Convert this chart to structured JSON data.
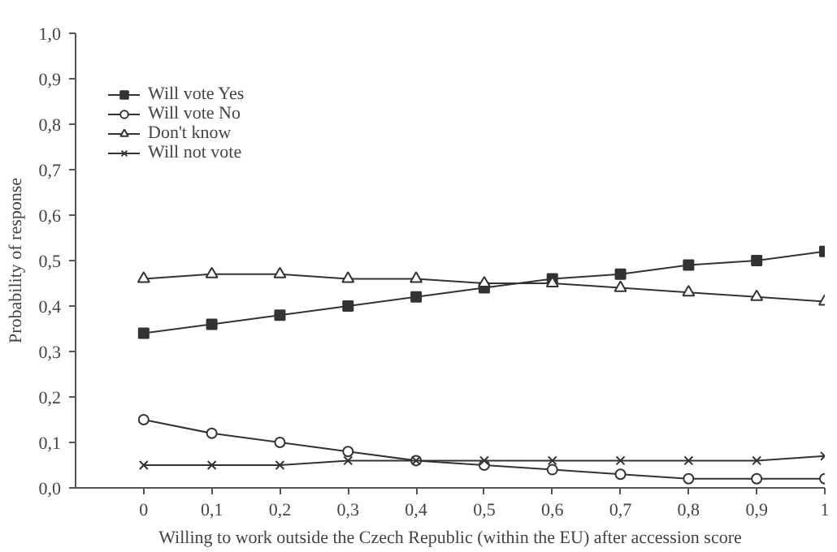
{
  "chart_data": {
    "type": "line",
    "xlabel": "Willing to work outside the Czech Republic (within the EU) after accession score",
    "ylabel": "Probability of response",
    "x": [
      0,
      0.1,
      0.2,
      0.3,
      0.4,
      0.5,
      0.6,
      0.7,
      0.8,
      0.9,
      1
    ],
    "series": [
      {
        "name": "Will vote Yes",
        "color": "#333333",
        "marker": "square",
        "values": [
          0.34,
          0.36,
          0.38,
          0.4,
          0.42,
          0.44,
          0.46,
          0.47,
          0.49,
          0.5,
          0.52
        ]
      },
      {
        "name": "Will vote No",
        "color": "#333333",
        "marker": "circle",
        "values": [
          0.15,
          0.12,
          0.1,
          0.08,
          0.06,
          0.05,
          0.04,
          0.03,
          0.02,
          0.02,
          0.02
        ]
      },
      {
        "name": "Don't know",
        "color": "#333333",
        "marker": "triangle",
        "values": [
          0.46,
          0.47,
          0.47,
          0.46,
          0.46,
          0.45,
          0.45,
          0.44,
          0.43,
          0.42,
          0.41
        ]
      },
      {
        "name": "Will not vote",
        "color": "#333333",
        "marker": "cross",
        "values": [
          0.05,
          0.05,
          0.05,
          0.06,
          0.06,
          0.06,
          0.06,
          0.06,
          0.06,
          0.06,
          0.07
        ]
      }
    ],
    "xlim": [
      -0.1,
      1.0
    ],
    "ylim": [
      0,
      1.0
    ],
    "xticks": [
      0,
      {
        "value": 0.1,
        "label": "0,1"
      },
      {
        "value": 0.2,
        "label": "0,2"
      },
      {
        "value": 0.3,
        "label": "0,3"
      },
      {
        "value": 0.4,
        "label": "0,4"
      },
      {
        "value": 0.5,
        "label": "0,5"
      },
      {
        "value": 0.6,
        "label": "0,6"
      },
      {
        "value": 0.7,
        "label": "0,7"
      },
      {
        "value": 0.8,
        "label": "0,8"
      },
      {
        "value": 0.9,
        "label": "0,9"
      },
      1
    ],
    "yticks": [
      {
        "value": 0,
        "label": "0,0"
      },
      {
        "value": 0.1,
        "label": "0,1"
      },
      {
        "value": 0.2,
        "label": "0,2"
      },
      {
        "value": 0.3,
        "label": "0,3"
      },
      {
        "value": 0.4,
        "label": "0,4"
      },
      {
        "value": 0.5,
        "label": "0,5"
      },
      {
        "value": 0.6,
        "label": "0,6"
      },
      {
        "value": 0.7,
        "label": "0,7"
      },
      {
        "value": 0.8,
        "label": "0,8"
      },
      {
        "value": 0.9,
        "label": "0,9"
      },
      {
        "value": 1.0,
        "label": "1,0"
      }
    ],
    "grid": false,
    "legend": "top left",
    "line_style": "solid"
  }
}
